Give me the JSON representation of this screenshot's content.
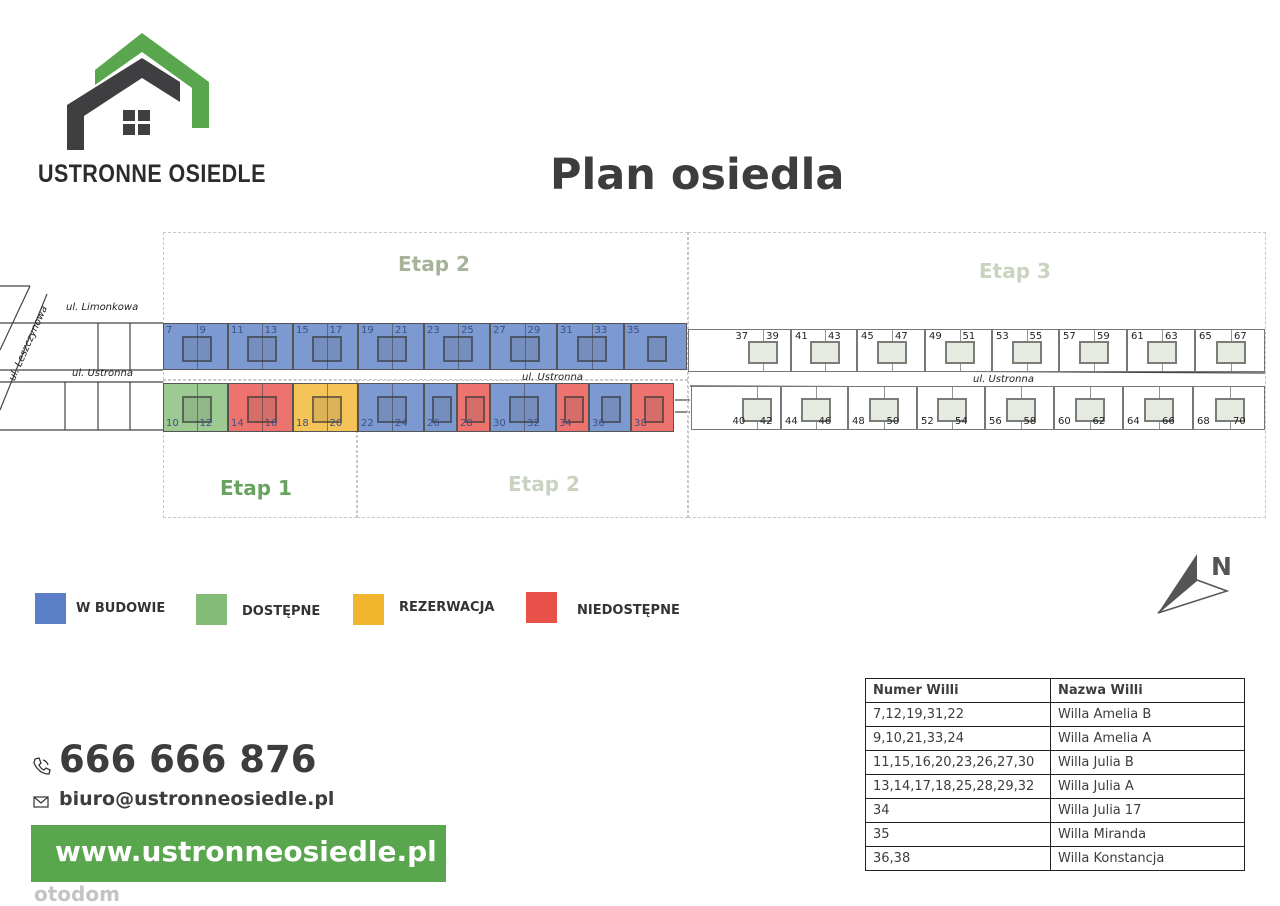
{
  "logo": {
    "text": "USTRONNE OSIEDLE",
    "colors": {
      "roof_green": "#5aa64e",
      "roof_dark": "#3f3f42"
    }
  },
  "title": "Plan osiedla",
  "map": {
    "etapy": [
      {
        "label": "Etap 2",
        "color": "#a7b29a"
      },
      {
        "label": "Etap 3",
        "color": "#c9d3bf"
      },
      {
        "label": "Etap 1",
        "color": "#6aa262"
      },
      {
        "label": "Etap 2",
        "color": "#c9d3bf"
      }
    ],
    "streets": {
      "limonkowa": "ul. Limonkowa",
      "leszczynowa": "ul. Leszczynowa",
      "ustronna_west": "ul. Ustronna",
      "ustronna_mid": "ul. Ustronna",
      "ustronna_east": "ul. Ustronna"
    },
    "status_colors": {
      "w_budowie": "#5b7fc6",
      "dostepne": "#85bb78",
      "rezerwacja": "#f2b52e",
      "niedostepne": "#e8514a",
      "wolne": "#ffffff"
    },
    "rows": [
      {
        "lots": [
          {
            "numbers": [
              "7",
              "9"
            ],
            "status": "w_budowie"
          },
          {
            "numbers": [
              "11",
              "13"
            ],
            "status": "w_budowie"
          },
          {
            "numbers": [
              "15",
              "17"
            ],
            "status": "w_budowie"
          },
          {
            "numbers": [
              "19",
              "21"
            ],
            "status": "w_budowie"
          },
          {
            "numbers": [
              "23",
              "25"
            ],
            "status": "w_budowie"
          },
          {
            "numbers": [
              "27",
              "29"
            ],
            "status": "w_budowie"
          },
          {
            "numbers": [
              "31",
              "33"
            ],
            "status": "w_budowie"
          },
          {
            "numbers": [
              "35"
            ],
            "status": "w_budowie"
          }
        ]
      },
      {
        "lots": [
          {
            "numbers": [
              "10",
              "12"
            ],
            "status": "dostepne"
          },
          {
            "numbers": [
              "14",
              "16"
            ],
            "status": "niedostepne"
          },
          {
            "numbers": [
              "18",
              "20"
            ],
            "status": "rezerwacja"
          },
          {
            "numbers": [
              "22",
              "24"
            ],
            "status": "w_budowie"
          },
          {
            "numbers": [
              "26"
            ],
            "status": "w_budowie"
          },
          {
            "numbers": [
              "28"
            ],
            "status": "niedostepne"
          },
          {
            "numbers": [
              "30",
              "32"
            ],
            "status": "w_budowie"
          },
          {
            "numbers": [
              "34"
            ],
            "status": "niedostepne"
          },
          {
            "numbers": [
              "36"
            ],
            "status": "w_budowie"
          },
          {
            "numbers": [
              "38"
            ],
            "status": "niedostepne"
          }
        ]
      },
      {
        "lots": [
          {
            "numbers": [
              "37",
              "39"
            ],
            "status": "wolne"
          },
          {
            "numbers": [
              "41",
              "43"
            ],
            "status": "wolne"
          },
          {
            "numbers": [
              "45",
              "47"
            ],
            "status": "wolne"
          },
          {
            "numbers": [
              "49",
              "51"
            ],
            "status": "wolne"
          },
          {
            "numbers": [
              "53",
              "55"
            ],
            "status": "wolne"
          },
          {
            "numbers": [
              "57",
              "59"
            ],
            "status": "wolne"
          },
          {
            "numbers": [
              "61",
              "63"
            ],
            "status": "wolne"
          },
          {
            "numbers": [
              "65",
              "67"
            ],
            "status": "wolne"
          }
        ]
      },
      {
        "lots": [
          {
            "numbers": [
              "40",
              "42"
            ],
            "status": "wolne"
          },
          {
            "numbers": [
              "44",
              "46"
            ],
            "status": "wolne"
          },
          {
            "numbers": [
              "48",
              "50"
            ],
            "status": "wolne"
          },
          {
            "numbers": [
              "52",
              "54"
            ],
            "status": "wolne"
          },
          {
            "numbers": [
              "56",
              "58"
            ],
            "status": "wolne"
          },
          {
            "numbers": [
              "60",
              "62"
            ],
            "status": "wolne"
          },
          {
            "numbers": [
              "64",
              "66"
            ],
            "status": "wolne"
          },
          {
            "numbers": [
              "68",
              "70"
            ],
            "status": "wolne"
          }
        ]
      }
    ],
    "compass": "N"
  },
  "legend": [
    {
      "label": "W BUDOWIE",
      "color": "#5b7fc6"
    },
    {
      "label": "DOSTĘPNE",
      "color": "#85bb78"
    },
    {
      "label": "REZERWACJA",
      "color": "#f2b52e"
    },
    {
      "label": "NIEDOSTĘPNE",
      "color": "#e8514a"
    }
  ],
  "table": {
    "headers": [
      "Numer Willi",
      "Nazwa Willi"
    ],
    "rows": [
      [
        "7,12,19,31,22",
        "Willa Amelia B"
      ],
      [
        "9,10,21,33,24",
        "Willa Amelia A"
      ],
      [
        "11,15,16,20,23,26,27,30",
        "Willa Julia B"
      ],
      [
        "13,14,17,18,25,28,29,32",
        "Willa Julia A"
      ],
      [
        "34",
        "Willa Julia 17"
      ],
      [
        "35",
        "Willa Miranda"
      ],
      [
        "36,38",
        "Willa Konstancja"
      ]
    ]
  },
  "contact": {
    "phone": "666 666 876",
    "email": "biuro@ustronneosiedle.pl",
    "website": "www.ustronneosiedle.pl"
  },
  "watermark": "otodom"
}
